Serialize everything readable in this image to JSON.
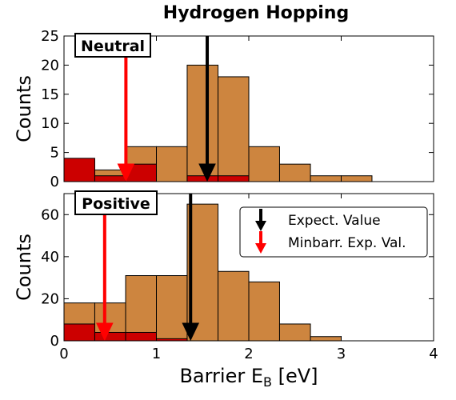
{
  "chart_data": {
    "type": "bar",
    "title": "Hydrogen Hopping",
    "xlabel": "Barrier E",
    "xlabel_sub": "B",
    "xlabel_unit": " [eV]",
    "xlim": [
      0,
      4
    ],
    "xticks": [
      "0",
      "1",
      "2",
      "3",
      "4"
    ],
    "bin_edges": [
      0,
      0.333,
      0.667,
      1.0,
      1.333,
      1.667,
      2.0,
      2.333,
      2.667,
      3.0,
      3.333
    ],
    "colors": {
      "total": "#cd853f",
      "minbarrier": "#cc0000",
      "expect_arrow": "#000000",
      "minbarr_arrow": "#ff0000"
    },
    "legend": {
      "placement": "upper-right (bottom panel)",
      "entries": [
        {
          "label": "Expect. Value",
          "color": "#000000"
        },
        {
          "label": "Minbarr. Exp. Val.",
          "color": "#ff0000"
        }
      ]
    },
    "panels": [
      {
        "label": "Neutral",
        "ylabel": "Counts",
        "ylim": [
          0,
          25
        ],
        "yticks": [
          "0",
          "5",
          "10",
          "15",
          "20",
          "25"
        ],
        "series": [
          {
            "values": [
              2,
              2,
              6,
              6,
              20,
              18,
              6,
              3,
              1,
              1
            ]
          },
          {
            "values": [
              4,
              1,
              3,
              0,
              1,
              1,
              0,
              0,
              0,
              0
            ]
          }
        ],
        "expect_value": 1.55,
        "minbarr_value": 0.67
      },
      {
        "label": "Positive",
        "ylabel": "Counts",
        "ylim": [
          0,
          70
        ],
        "yticks": [
          "0",
          "20",
          "40",
          "60"
        ],
        "series": [
          {
            "values": [
              18,
              18,
              31,
              31,
              65,
              33,
              28,
              8,
              2,
              0
            ]
          },
          {
            "values": [
              8,
              4,
              4,
              1,
              0,
              0,
              0,
              0,
              0,
              0
            ]
          }
        ],
        "expect_value": 1.37,
        "minbarr_value": 0.44
      }
    ]
  }
}
